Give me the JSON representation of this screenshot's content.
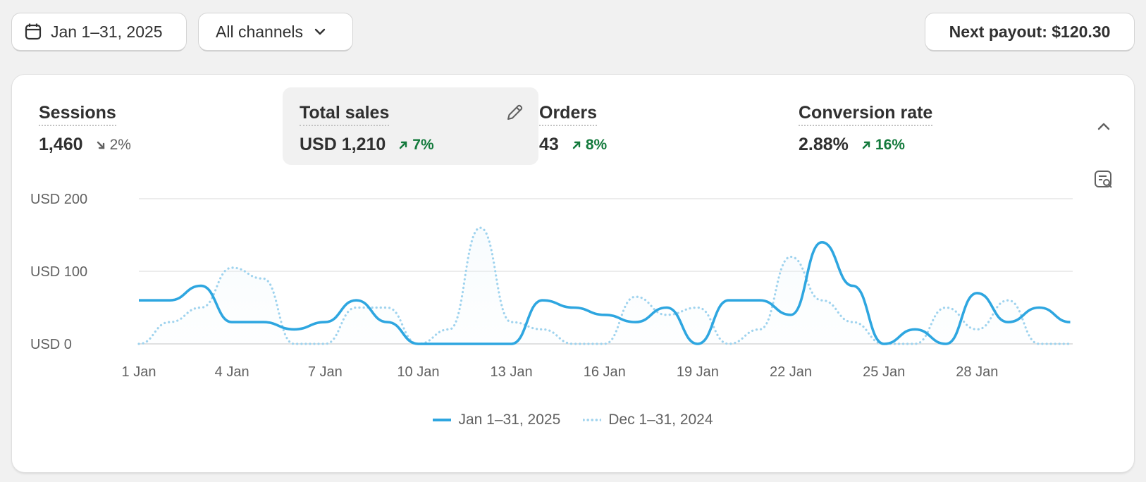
{
  "toolbar": {
    "date_range": "Jan 1–31, 2025",
    "channels": "All channels",
    "payout": "Next payout: $120.30"
  },
  "metrics": [
    {
      "label": "Sessions",
      "value": "1,460",
      "change": "2%",
      "direction": "down"
    },
    {
      "label": "Total sales",
      "value": "USD 1,210",
      "change": "7%",
      "direction": "up",
      "active": true
    },
    {
      "label": "Orders",
      "value": "43",
      "change": "8%",
      "direction": "up"
    },
    {
      "label": "Conversion rate",
      "value": "2.88%",
      "change": "16%",
      "direction": "up"
    }
  ],
  "icons": {
    "calendar": "calendar-icon",
    "chevron": "chevron-down-icon",
    "edit": "pencil-icon",
    "collapse": "chevron-up-icon",
    "report": "search-report-icon"
  },
  "colors": {
    "primary_series": "#2ea6e0",
    "comparison_series": "#9fd3ee",
    "positive": "#137a3c"
  },
  "chart_data": {
    "type": "line",
    "ylim": [
      0,
      200
    ],
    "yticks": [
      0,
      100,
      200
    ],
    "ytick_labels": [
      "USD 0",
      "USD 100",
      "USD 200"
    ],
    "x": [
      1,
      2,
      3,
      4,
      5,
      6,
      7,
      8,
      9,
      10,
      11,
      12,
      13,
      14,
      15,
      16,
      17,
      18,
      19,
      20,
      21,
      22,
      23,
      24,
      25,
      26,
      27,
      28,
      29,
      30,
      31
    ],
    "xtick_values": [
      1,
      4,
      7,
      10,
      13,
      16,
      19,
      22,
      25,
      28
    ],
    "xtick_labels": [
      "1 Jan",
      "4 Jan",
      "7 Jan",
      "10 Jan",
      "13 Jan",
      "16 Jan",
      "19 Jan",
      "22 Jan",
      "25 Jan",
      "28 Jan"
    ],
    "grid": true,
    "legend_position": "bottom",
    "series": [
      {
        "name": "Jan 1–31, 2025",
        "style": "solid",
        "values": [
          60,
          60,
          80,
          30,
          30,
          20,
          30,
          60,
          30,
          0,
          0,
          0,
          0,
          60,
          50,
          40,
          30,
          50,
          0,
          60,
          60,
          40,
          140,
          80,
          0,
          20,
          0,
          70,
          30,
          50,
          30
        ]
      },
      {
        "name": "Dec 1–31, 2024",
        "style": "dotted",
        "values": [
          0,
          30,
          50,
          105,
          90,
          0,
          0,
          50,
          50,
          0,
          20,
          160,
          30,
          20,
          0,
          0,
          65,
          40,
          50,
          0,
          20,
          120,
          60,
          30,
          0,
          0,
          50,
          20,
          60,
          0,
          0
        ]
      }
    ]
  }
}
